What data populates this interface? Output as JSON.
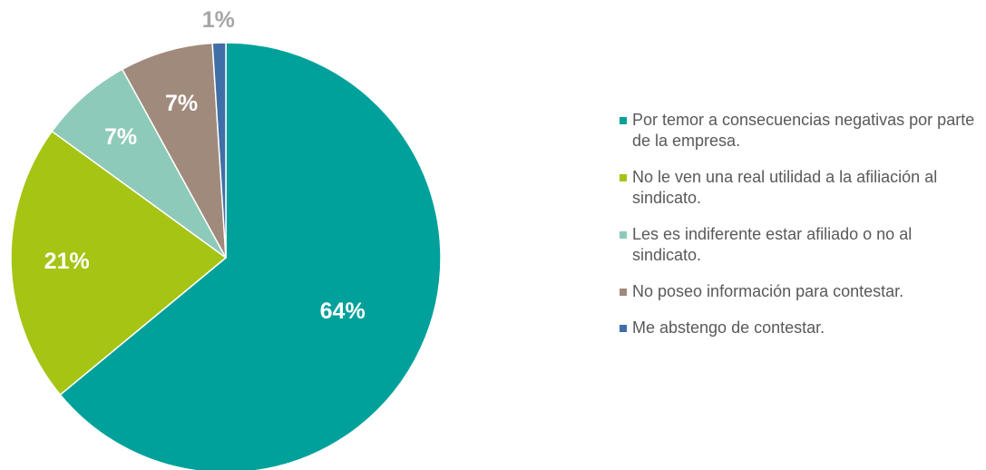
{
  "chart_data": {
    "type": "pie",
    "categories": [
      "Por temor a consecuencias negativas por parte de la empresa.",
      "No le ven una real utilidad a la afiliación al sindicato.",
      "Les es indiferente estar afiliado o no al sindicato.",
      "No poseo información para contestar.",
      "Me abstengo de contestar."
    ],
    "values": [
      64,
      21,
      7,
      7,
      1
    ],
    "value_labels": [
      "64%",
      "21%",
      "7%",
      "7%",
      "1%"
    ],
    "colors": [
      "#00a19a",
      "#a5c414",
      "#8ecab9",
      "#a08a7c",
      "#3f6fa6"
    ],
    "legend": "right"
  }
}
